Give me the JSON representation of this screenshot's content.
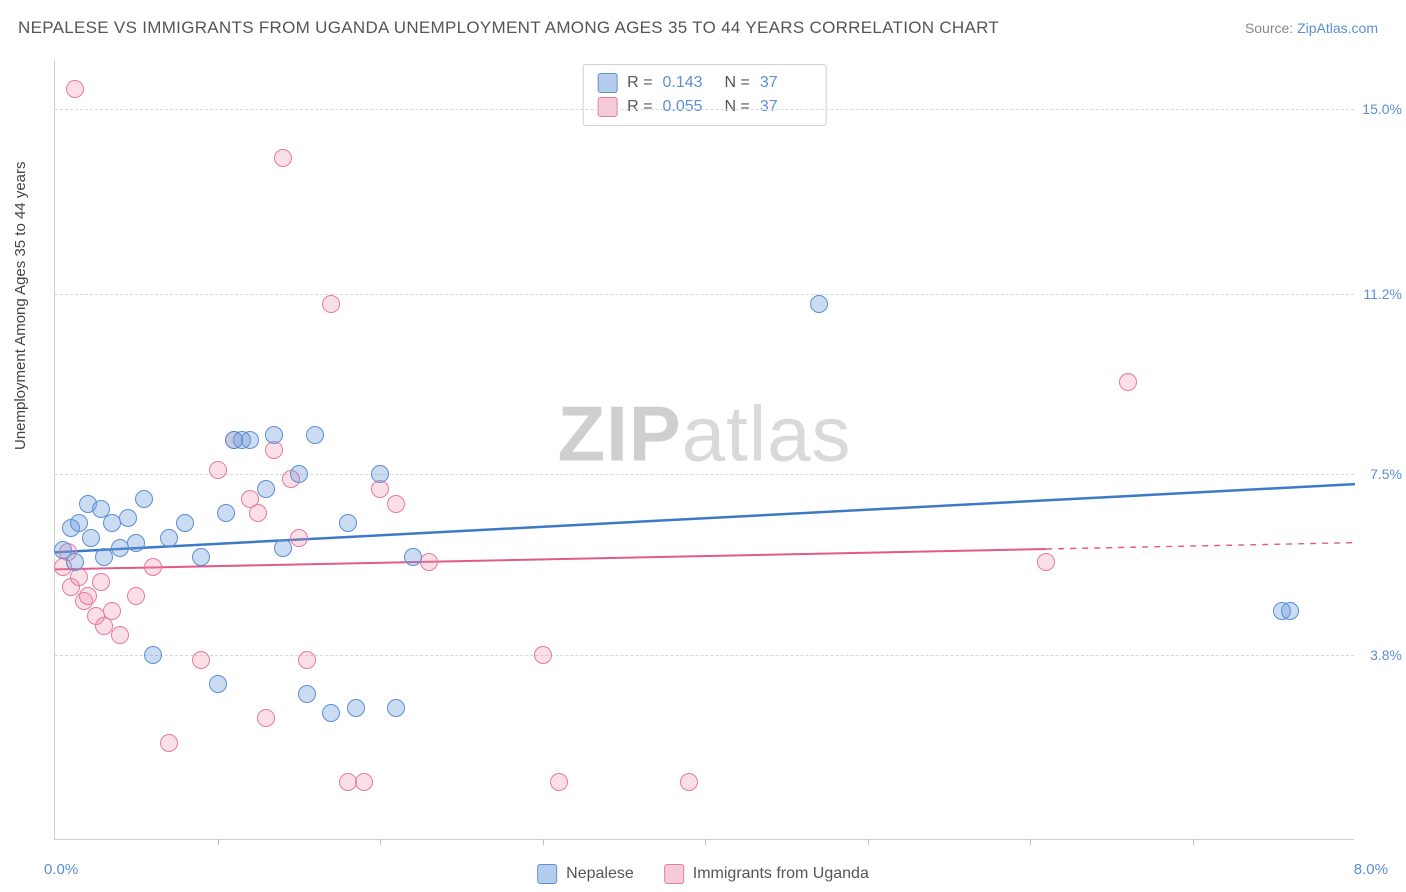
{
  "title": "NEPALESE VS IMMIGRANTS FROM UGANDA UNEMPLOYMENT AMONG AGES 35 TO 44 YEARS CORRELATION CHART",
  "source": {
    "label": "Source: ",
    "name": "ZipAtlas.com"
  },
  "ylabel": "Unemployment Among Ages 35 to 44 years",
  "watermark": {
    "bold": "ZIP",
    "rest": "atlas"
  },
  "chart": {
    "type": "scatter",
    "xlim": [
      0.0,
      8.0
    ],
    "ylim": [
      0.0,
      16.0
    ],
    "x_axis_label_min": "0.0%",
    "x_axis_label_max": "8.0%",
    "x_ticks": [
      1.0,
      2.0,
      3.0,
      4.0,
      5.0,
      6.0,
      7.0
    ],
    "y_gridlines": [
      3.8,
      7.5,
      11.2,
      15.0
    ],
    "y_tick_labels": [
      "3.8%",
      "7.5%",
      "11.2%",
      "15.0%"
    ],
    "background_color": "#ffffff",
    "grid_color": "#d8d8d8",
    "axis_color": "#d0d0d0",
    "marker_radius": 9,
    "series": [
      {
        "name": "Nepalese",
        "color_fill": "rgba(105,155,219,0.35)",
        "color_stroke": "#5b8fd6",
        "R": "0.143",
        "N": "37",
        "trend": {
          "y_at_xmin": 5.9,
          "y_at_xmax": 7.3,
          "solid_until_x": 8.0,
          "stroke": "#3d78c9",
          "width": 2.5
        },
        "points": [
          [
            0.05,
            5.95
          ],
          [
            0.1,
            6.4
          ],
          [
            0.12,
            5.7
          ],
          [
            0.15,
            6.5
          ],
          [
            0.2,
            6.9
          ],
          [
            0.22,
            6.2
          ],
          [
            0.28,
            6.8
          ],
          [
            0.3,
            5.8
          ],
          [
            0.35,
            6.5
          ],
          [
            0.4,
            6.0
          ],
          [
            0.45,
            6.6
          ],
          [
            0.5,
            6.1
          ],
          [
            0.55,
            7.0
          ],
          [
            0.6,
            3.8
          ],
          [
            0.7,
            6.2
          ],
          [
            0.8,
            6.5
          ],
          [
            0.9,
            5.8
          ],
          [
            1.0,
            3.2
          ],
          [
            1.05,
            6.7
          ],
          [
            1.1,
            8.2
          ],
          [
            1.15,
            8.2
          ],
          [
            1.2,
            8.2
          ],
          [
            1.3,
            7.2
          ],
          [
            1.35,
            8.3
          ],
          [
            1.4,
            6.0
          ],
          [
            1.5,
            7.5
          ],
          [
            1.55,
            3.0
          ],
          [
            1.6,
            8.3
          ],
          [
            1.7,
            2.6
          ],
          [
            1.8,
            6.5
          ],
          [
            1.85,
            2.7
          ],
          [
            2.0,
            7.5
          ],
          [
            2.1,
            2.7
          ],
          [
            2.2,
            5.8
          ],
          [
            4.7,
            11.0
          ],
          [
            7.55,
            4.7
          ],
          [
            7.6,
            4.7
          ]
        ]
      },
      {
        "name": "Immigrants from Uganda",
        "color_fill": "rgba(236,140,170,0.28)",
        "color_stroke": "#e67aa0",
        "R": "0.055",
        "N": "37",
        "trend": {
          "y_at_xmin": 5.55,
          "y_at_xmax": 6.1,
          "solid_until_x": 6.1,
          "stroke": "#e05a8a",
          "width": 2
        },
        "points": [
          [
            0.05,
            5.6
          ],
          [
            0.08,
            5.9
          ],
          [
            0.1,
            5.2
          ],
          [
            0.12,
            15.4
          ],
          [
            0.15,
            5.4
          ],
          [
            0.18,
            4.9
          ],
          [
            0.2,
            5.0
          ],
          [
            0.25,
            4.6
          ],
          [
            0.28,
            5.3
          ],
          [
            0.3,
            4.4
          ],
          [
            0.35,
            4.7
          ],
          [
            0.4,
            4.2
          ],
          [
            0.5,
            5.0
          ],
          [
            0.6,
            5.6
          ],
          [
            0.7,
            2.0
          ],
          [
            0.9,
            3.7
          ],
          [
            1.0,
            7.6
          ],
          [
            1.1,
            8.2
          ],
          [
            1.2,
            7.0
          ],
          [
            1.25,
            6.7
          ],
          [
            1.3,
            2.5
          ],
          [
            1.35,
            8.0
          ],
          [
            1.4,
            14.0
          ],
          [
            1.45,
            7.4
          ],
          [
            1.5,
            6.2
          ],
          [
            1.55,
            3.7
          ],
          [
            1.7,
            11.0
          ],
          [
            1.8,
            1.2
          ],
          [
            1.9,
            1.2
          ],
          [
            2.0,
            7.2
          ],
          [
            2.1,
            6.9
          ],
          [
            2.3,
            5.7
          ],
          [
            3.0,
            3.8
          ],
          [
            3.1,
            1.2
          ],
          [
            3.9,
            1.2
          ],
          [
            6.1,
            5.7
          ],
          [
            6.6,
            9.4
          ]
        ]
      }
    ]
  },
  "stats_box": {
    "rows": [
      {
        "swatch": "blue",
        "r_label": "R  =",
        "r_val": "0.143",
        "n_label": "N  =",
        "n_val": "37"
      },
      {
        "swatch": "pink",
        "r_label": "R  =",
        "r_val": "0.055",
        "n_label": "N  =",
        "n_val": "37"
      }
    ]
  },
  "bottom_legend": [
    {
      "swatch": "blue",
      "label": "Nepalese"
    },
    {
      "swatch": "pink",
      "label": "Immigrants from Uganda"
    }
  ]
}
